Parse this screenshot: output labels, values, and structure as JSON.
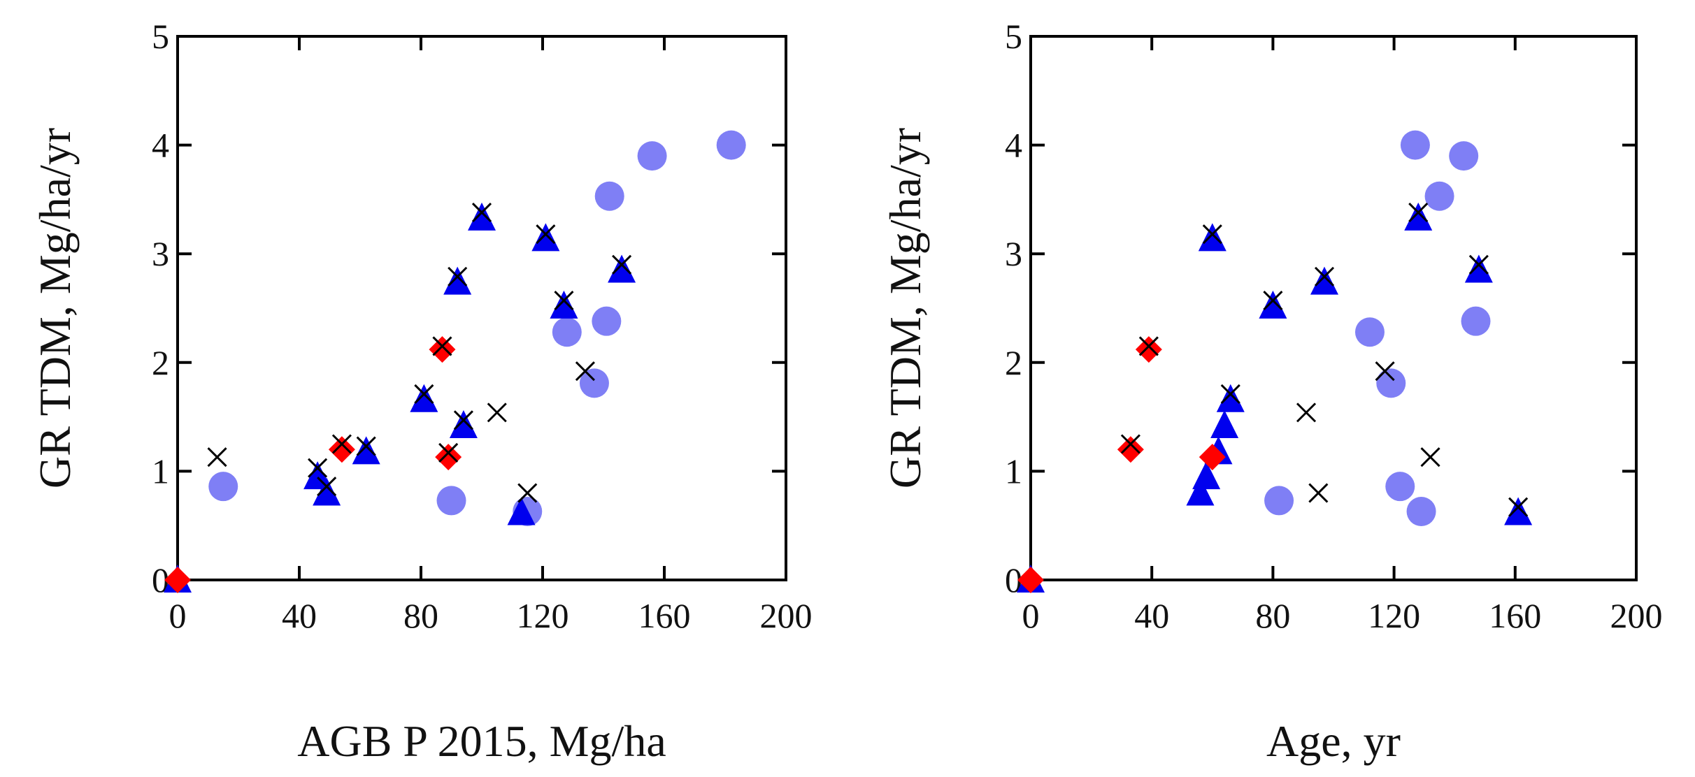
{
  "chart_data": [
    {
      "type": "scatter",
      "title": "",
      "xlabel": "AGB P 2015, Mg/ha",
      "ylabel": "GR TDM, Mg/ha/yr",
      "xlim": [
        0,
        200
      ],
      "ylim": [
        0,
        5
      ],
      "xticks": [
        "0",
        "40",
        "80",
        "120",
        "160",
        "200"
      ],
      "yticks": [
        "0",
        "1",
        "2",
        "3",
        "4",
        "5"
      ],
      "grid": false,
      "series": [
        {
          "name": "circles",
          "marker": "circle",
          "color": "#7f7ff5",
          "points": [
            [
              15,
              0.86
            ],
            [
              90,
              0.73
            ],
            [
              115,
              0.63
            ],
            [
              128,
              2.28
            ],
            [
              137,
              1.81
            ],
            [
              141,
              2.38
            ],
            [
              142,
              3.53
            ],
            [
              156,
              3.9
            ],
            [
              182,
              4.0
            ]
          ]
        },
        {
          "name": "triangles",
          "marker": "triangle",
          "color": "#0000ee",
          "points": [
            [
              0,
              0.0
            ],
            [
              46,
              0.95
            ],
            [
              49,
              0.8
            ],
            [
              62,
              1.18
            ],
            [
              81,
              1.66
            ],
            [
              92,
              2.74
            ],
            [
              94,
              1.42
            ],
            [
              100,
              3.33
            ],
            [
              113,
              0.62
            ],
            [
              121,
              3.14
            ],
            [
              127,
              2.52
            ],
            [
              146,
              2.85
            ]
          ]
        },
        {
          "name": "diamonds",
          "marker": "diamond",
          "color": "#ff0000",
          "points": [
            [
              0,
              0.0
            ],
            [
              54,
              1.2
            ],
            [
              87,
              2.12
            ],
            [
              89,
              1.13
            ]
          ]
        },
        {
          "name": "crosses",
          "marker": "x",
          "color": "#000000",
          "points": [
            [
              13,
              1.13
            ],
            [
              105,
              1.54
            ],
            [
              115,
              0.8
            ],
            [
              134,
              1.92
            ],
            [
              46,
              1.03
            ],
            [
              49,
              0.86
            ],
            [
              54,
              1.25
            ],
            [
              62,
              1.23
            ],
            [
              81,
              1.71
            ],
            [
              87,
              2.15
            ],
            [
              89,
              1.17
            ],
            [
              92,
              2.79
            ],
            [
              94,
              1.47
            ],
            [
              100,
              3.38
            ],
            [
              121,
              3.18
            ],
            [
              127,
              2.57
            ],
            [
              146,
              2.9
            ]
          ]
        }
      ]
    },
    {
      "type": "scatter",
      "title": "",
      "xlabel": "Age, yr",
      "ylabel": "GR TDM, Mg/ha/yr",
      "xlim": [
        0,
        200
      ],
      "ylim": [
        0,
        5
      ],
      "xticks": [
        "0",
        "40",
        "80",
        "120",
        "160",
        "200"
      ],
      "yticks": [
        "0",
        "1",
        "2",
        "3",
        "4",
        "5"
      ],
      "grid": false,
      "series": [
        {
          "name": "circles",
          "marker": "circle",
          "color": "#7f7ff5",
          "points": [
            [
              82,
              0.73
            ],
            [
              112,
              2.28
            ],
            [
              119,
              1.81
            ],
            [
              122,
              0.86
            ],
            [
              127,
              4.0
            ],
            [
              129,
              0.63
            ],
            [
              135,
              3.53
            ],
            [
              143,
              3.9
            ],
            [
              147,
              2.38
            ]
          ]
        },
        {
          "name": "triangles",
          "marker": "triangle",
          "color": "#0000ee",
          "points": [
            [
              0,
              0.0
            ],
            [
              56,
              0.8
            ],
            [
              58,
              0.95
            ],
            [
              60,
              3.14
            ],
            [
              62,
              1.18
            ],
            [
              64,
              1.42
            ],
            [
              66,
              1.66
            ],
            [
              80,
              2.52
            ],
            [
              97,
              2.74
            ],
            [
              128,
              3.33
            ],
            [
              148,
              2.85
            ],
            [
              161,
              0.62
            ]
          ]
        },
        {
          "name": "diamonds",
          "marker": "diamond",
          "color": "#ff0000",
          "points": [
            [
              0,
              0.0
            ],
            [
              33,
              1.2
            ],
            [
              39,
              2.12
            ],
            [
              60,
              1.13
            ]
          ]
        },
        {
          "name": "crosses",
          "marker": "x",
          "color": "#000000",
          "points": [
            [
              91,
              1.54
            ],
            [
              95,
              0.8
            ],
            [
              117,
              1.92
            ],
            [
              132,
              1.13
            ],
            [
              60,
              3.18
            ],
            [
              80,
              2.57
            ],
            [
              97,
              2.79
            ],
            [
              128,
              3.38
            ],
            [
              148,
              2.9
            ],
            [
              161,
              0.67
            ],
            [
              39,
              2.15
            ],
            [
              33,
              1.25
            ],
            [
              66,
              1.71
            ]
          ]
        }
      ]
    }
  ]
}
